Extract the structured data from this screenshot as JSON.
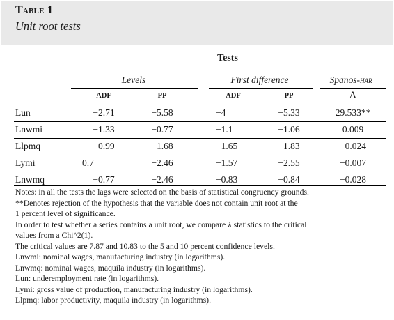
{
  "table_label": "Table 1",
  "table_title": "Unit root tests",
  "tests_header": "Tests",
  "groups": [
    "Levels",
    "First difference",
    "Spanos-HAR"
  ],
  "subheaders": [
    "ADF",
    "PP",
    "ADF",
    "PP",
    "Λ"
  ],
  "rows": [
    {
      "label": "Lun",
      "values": [
        "−2.71",
        "−5.58",
        "−4",
        "−5.33",
        "29.533**"
      ]
    },
    {
      "label": "Lnwmi",
      "values": [
        "−1.33",
        "−0.77",
        "−1.1",
        "−1.06",
        "0.009"
      ]
    },
    {
      "label": "Llpmq",
      "values": [
        "−0.99",
        "−1.68",
        "−1.65",
        "−1.83",
        "−0.024"
      ]
    },
    {
      "label": "Lymi",
      "values": [
        "0.7",
        "−2.46",
        "−1.57",
        "−2.55",
        "−0.007"
      ]
    },
    {
      "label": "Lnwmq",
      "values": [
        "−0.77",
        "−2.46",
        "−0.83",
        "−0.84",
        "−0.028"
      ]
    }
  ],
  "notes": [
    "Notes: in all the tests the lags were selected on the basis of statistical congruency grounds.",
    "**Denotes rejection of the hypothesis that the variable does not contain unit root at the",
    "1 percent level of significance.",
    "In order to test whether a series contains a unit root, we compare λ statistics to the critical",
    "values from a Chi^2(1).",
    "The critical values are 7.87 and 10.83 to the 5 and 10 percent confidence levels.",
    "Lnwmi: nominal wages, manufacturing industry (in logarithms).",
    "Lnwmq: nominal wages, maquila industry (in logarithms).",
    "Lun: underemployment rate (in logarithms).",
    "Lymi: gross value of production, manufacturing industry (in logarithms).",
    "Llpmq: labor productivity, maquila industry (in logarithms)."
  ]
}
